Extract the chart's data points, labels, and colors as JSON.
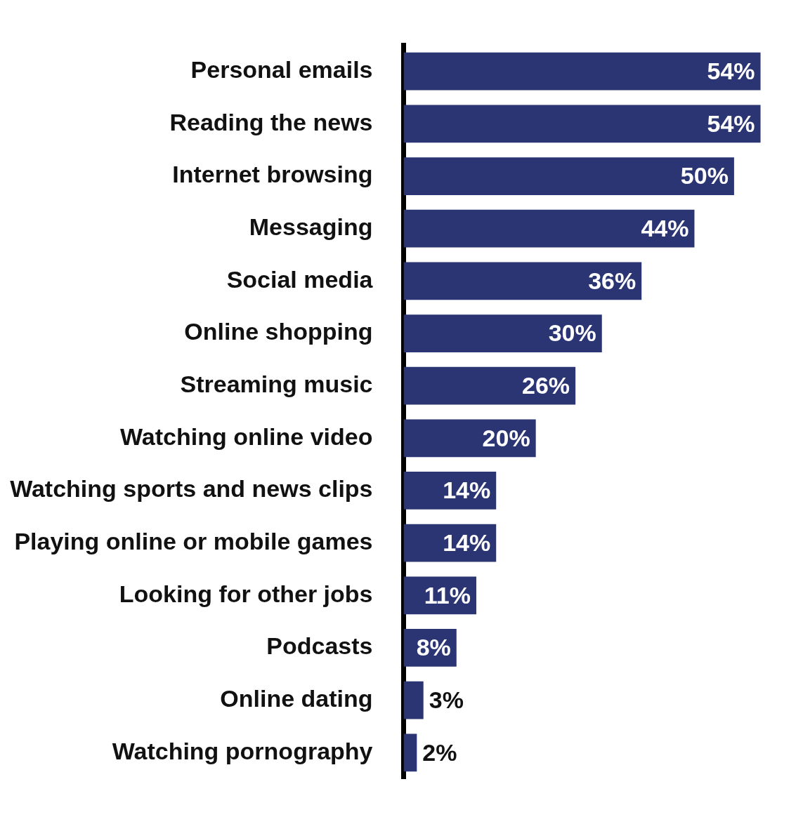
{
  "chart_data": {
    "type": "bar",
    "orientation": "horizontal",
    "categories": [
      "Personal emails",
      "Reading the news",
      "Internet browsing",
      "Messaging",
      "Social media",
      "Online shopping",
      "Streaming music",
      "Watching online video",
      "Watching sports and news clips",
      "Playing online or mobile games",
      "Looking for other jobs",
      "Podcasts",
      "Online dating",
      "Watching pornography"
    ],
    "values": [
      54,
      54,
      50,
      44,
      36,
      30,
      26,
      20,
      14,
      14,
      11,
      8,
      3,
      2
    ],
    "value_labels": [
      "54%",
      "54%",
      "50%",
      "44%",
      "36%",
      "30%",
      "26%",
      "20%",
      "14%",
      "14%",
      "11%",
      "8%",
      "3%",
      "2%"
    ],
    "color": "#2b3573",
    "tick_labels": "y",
    "grid": false,
    "legend": false
  }
}
